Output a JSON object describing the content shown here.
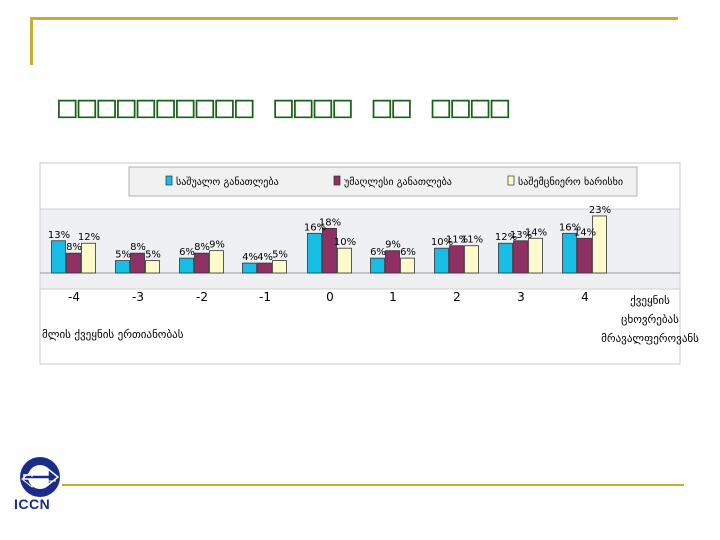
{
  "slide": {
    "title_line1": "□□□□□□□□□□ □□□□ □□ □□□□",
    "title_line2": "□□□□□□ □□□□□□□□□□□",
    "logo_text": "ICCN"
  },
  "chart_data": {
    "type": "bar",
    "categories": [
      "-4",
      "-3",
      "-2",
      "-1",
      "0",
      "1",
      "2",
      "3",
      "4"
    ],
    "series": [
      {
        "name": "საშუალო განათლება",
        "values": [
          13,
          5,
          6,
          4,
          16,
          6,
          10,
          12,
          16
        ],
        "color": "#17bde6"
      },
      {
        "name": "უმაღლესი განათლება",
        "values": [
          8,
          8,
          8,
          4,
          18,
          9,
          11,
          13,
          14
        ],
        "color": "#8e3063"
      },
      {
        "name": "საშემცნიერო ხარისხი",
        "values": [
          12,
          5,
          9,
          5,
          10,
          6,
          11,
          14,
          23
        ],
        "color": "#fdfbcc"
      }
    ],
    "data_labels": [
      [
        "13%",
        "5%",
        "6%",
        "4%",
        "16%",
        "6%",
        "10%",
        "12%",
        "16%"
      ],
      [
        "8%",
        "8%",
        "8%",
        "4%",
        "18%",
        "9%",
        "11%",
        "13%",
        "14%"
      ],
      [
        "12%",
        "5%",
        "9%",
        "5%",
        "10%",
        "6%",
        "11%",
        "14%",
        "23%"
      ]
    ],
    "xlabel": "მლის ქვეყნის ერთიანობას",
    "right_label": [
      "ქვეყნის",
      "ცხოვრებას",
      "მრავალფეროვანს"
    ],
    "ylim": [
      0,
      25
    ],
    "legend_position": "top",
    "grid": false
  }
}
